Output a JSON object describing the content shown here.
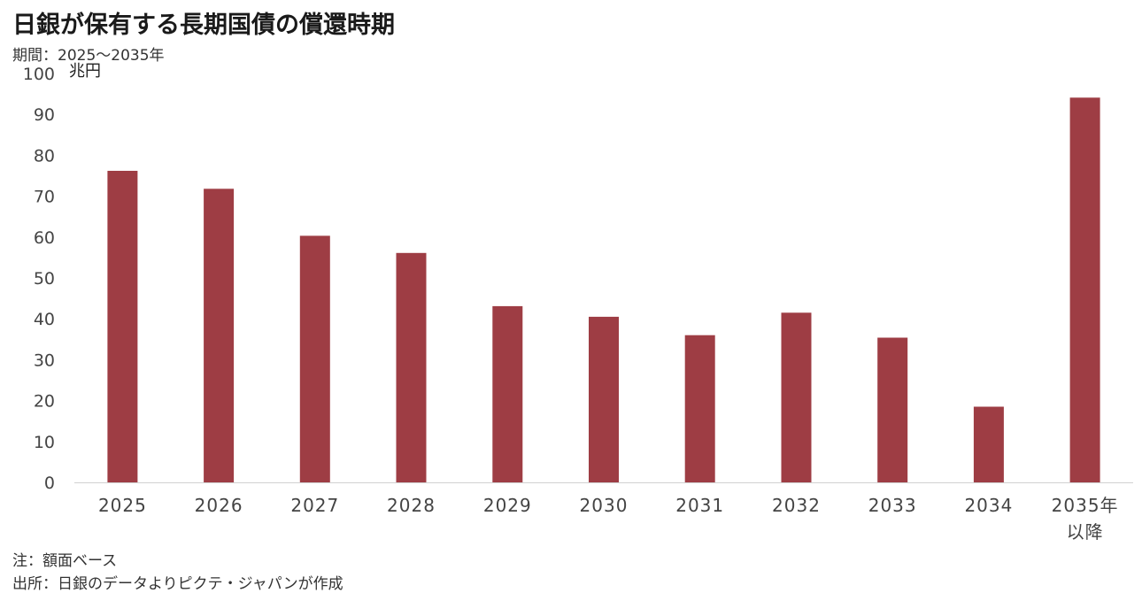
{
  "title": "日銀が保有する長期国債の償還時期",
  "subtitle": "期間：2025～2035年",
  "unit_label": "兆円",
  "notes": [
    "注：額面ベース",
    "出所：日銀のデータよりピクテ・ジャパンが作成"
  ],
  "colors": {
    "bar": "#9e3d44",
    "axis": "#d0d0d0"
  },
  "chart_data": {
    "type": "bar",
    "categories": [
      "2025",
      "2026",
      "2027",
      "2028",
      "2029",
      "2030",
      "2031",
      "2032",
      "2033",
      "2034",
      "2035年\n以降"
    ],
    "values": [
      76.2,
      71.8,
      60.3,
      56.1,
      43.1,
      40.5,
      36.0,
      41.5,
      35.4,
      18.5,
      94.1
    ],
    "ylim": [
      0,
      100
    ],
    "yticks": [
      0,
      10,
      20,
      30,
      40,
      50,
      60,
      70,
      80,
      90,
      100
    ],
    "ylabel": "兆円",
    "xlabel": "",
    "grid": false,
    "legend": "none"
  }
}
